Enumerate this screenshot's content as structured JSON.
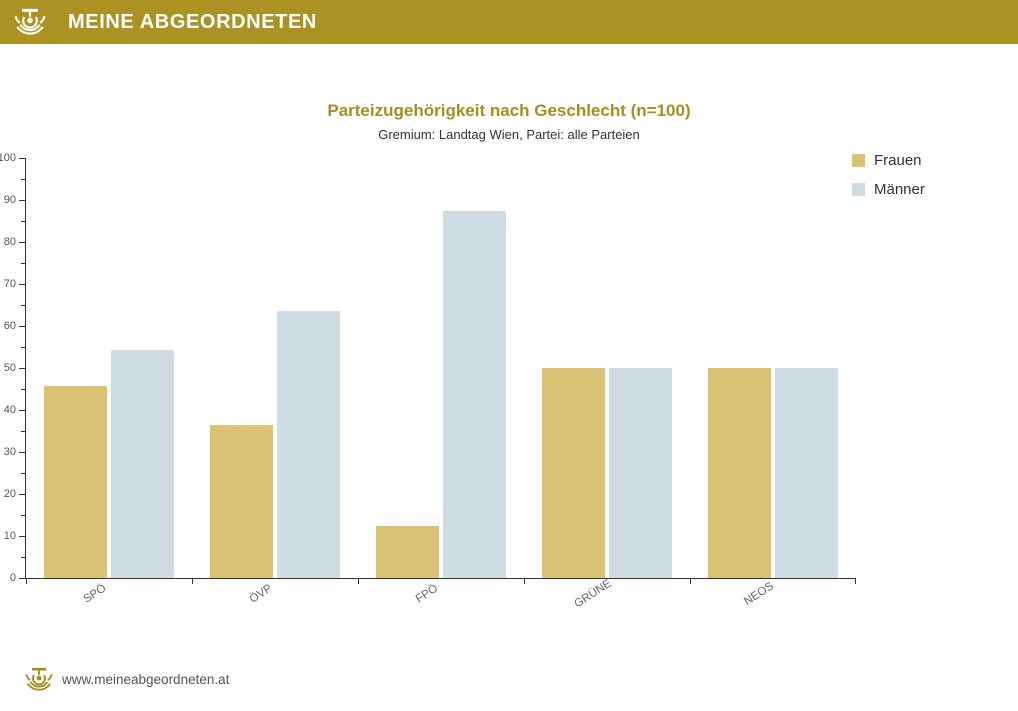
{
  "header": {
    "brand": "MEINE ABGEORDNETEN",
    "logo_icon": "hemicycle-speaker-icon",
    "bg_color": "#AC9123",
    "text_color": "#FFFFFF"
  },
  "chart_data": {
    "type": "bar",
    "title": "Parteizugehörigkeit nach Geschlecht (n=100)",
    "subtitle": "Gremium: Landtag Wien, Partei: alle Parteien",
    "categories": [
      "SPÖ",
      "ÖVP",
      "FPÖ",
      "GRÜNE",
      "NEOS"
    ],
    "series": [
      {
        "name": "Frauen",
        "color": "#DCC274",
        "values": [
          45.7,
          36.4,
          12.5,
          50,
          50
        ]
      },
      {
        "name": "Männer",
        "color": "#CFDCE4",
        "values": [
          54.3,
          63.6,
          87.5,
          50,
          50
        ]
      }
    ],
    "xlabel": "",
    "ylabel": "",
    "ylim": [
      0,
      100
    ],
    "y_ticks": [
      0,
      10,
      20,
      30,
      40,
      50,
      60,
      70,
      80,
      90,
      100
    ],
    "y_minor_step": 5,
    "grid": false,
    "legend_position": "top-right",
    "title_color": "#A68E1F",
    "axis_color": "#333333"
  },
  "footer": {
    "url": "www.meineabgeordneten.at",
    "logo_icon": "hemicycle-speaker-icon"
  }
}
